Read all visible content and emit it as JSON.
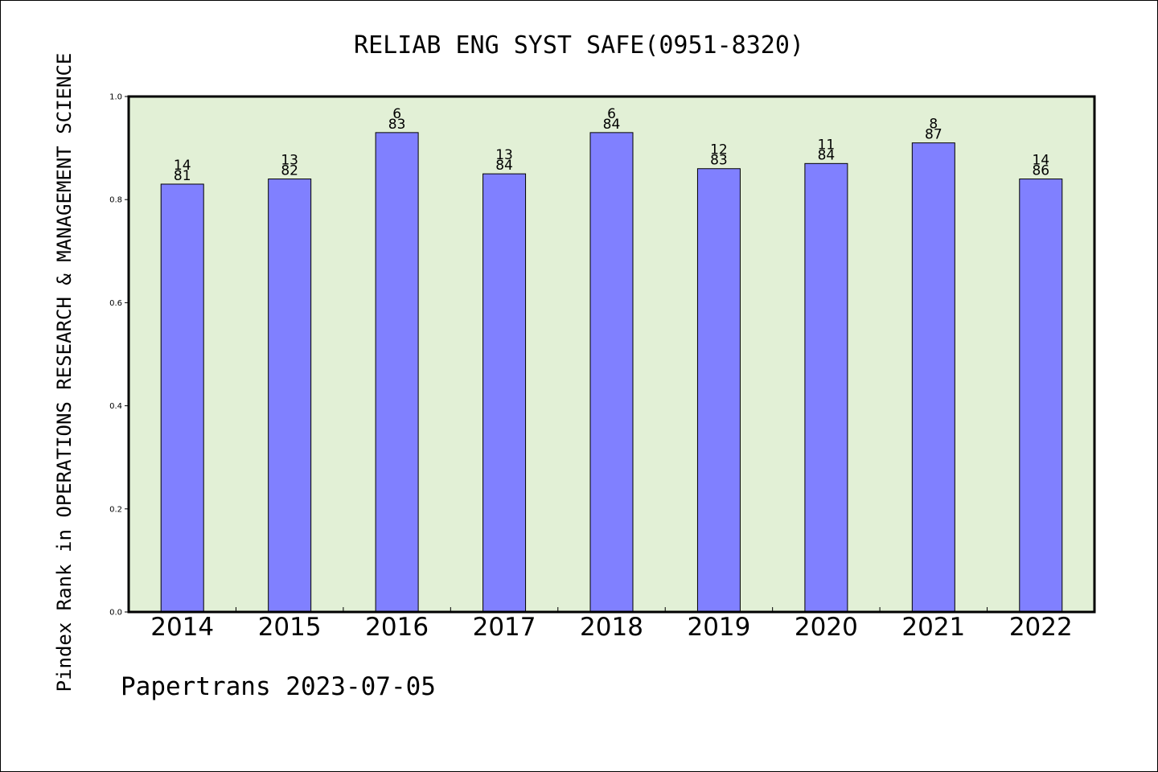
{
  "chart_data": {
    "type": "bar",
    "title": "RELIAB ENG SYST SAFE(0951-8320)",
    "xlabel": "",
    "ylabel": "Pindex Rank in OPERATIONS RESEARCH & MANAGEMENT SCIENCE",
    "ylim": [
      0,
      1.0
    ],
    "yticks": [
      "0.0",
      "0.2",
      "0.4",
      "0.6",
      "0.8",
      "1.0"
    ],
    "categories": [
      "2014",
      "2015",
      "2016",
      "2017",
      "2018",
      "2019",
      "2020",
      "2021",
      "2022"
    ],
    "values": [
      0.83,
      0.84,
      0.93,
      0.85,
      0.93,
      0.86,
      0.87,
      0.91,
      0.84
    ],
    "rank_labels": [
      "14",
      "13",
      "6",
      "13",
      "6",
      "12",
      "11",
      "8",
      "14"
    ],
    "total_labels": [
      "81",
      "82",
      "83",
      "84",
      "84",
      "83",
      "84",
      "87",
      "86"
    ],
    "grid": false,
    "legend": "none",
    "colors": {
      "bar": "#8080ff",
      "plot_bg": "#e2f0d6",
      "axis": "#000000"
    }
  },
  "footer": {
    "text": "Papertrans 2023-07-05"
  }
}
